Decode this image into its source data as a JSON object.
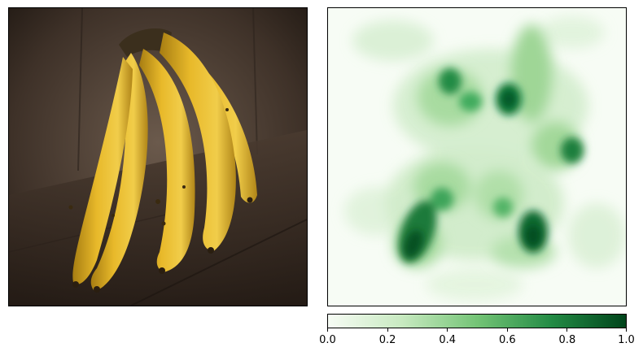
{
  "colorbar": {
    "colormap": "Greens",
    "colors": [
      "#f7fcf5",
      "#c7e9c0",
      "#74c476",
      "#238b45",
      "#00441b"
    ],
    "range": [
      0.0,
      1.0
    ],
    "ticks": [
      {
        "value": 0.0,
        "label": "0.0"
      },
      {
        "value": 0.2,
        "label": "0.2"
      },
      {
        "value": 0.4,
        "label": "0.4"
      },
      {
        "value": 0.6,
        "label": "0.6"
      },
      {
        "value": 0.8,
        "label": "0.8"
      },
      {
        "value": 1.0,
        "label": "1.0"
      }
    ]
  }
}
